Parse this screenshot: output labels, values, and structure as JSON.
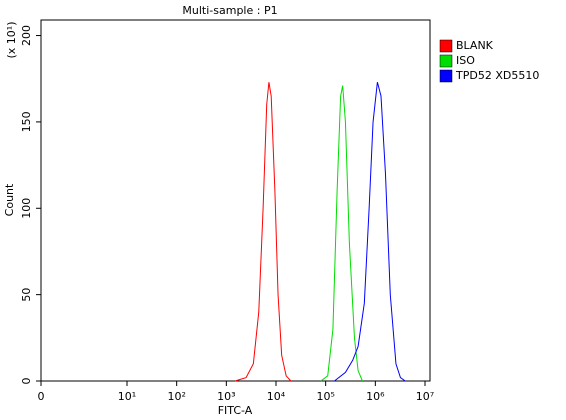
{
  "chart_data": {
    "type": "line",
    "title": "Multi-sample : P1",
    "x_label": "FITC-A",
    "y_label": "Count",
    "y_multiplier": "(x 10¹)",
    "xscale": "log",
    "xlim": [
      0,
      10000000
    ],
    "xticks": [
      0,
      {
        "value": 10,
        "label": "10¹"
      },
      {
        "value": 100,
        "label": "10²"
      },
      {
        "value": 1000,
        "label": "10³"
      },
      {
        "value": 10000,
        "label": "10⁴"
      },
      {
        "value": 100000,
        "label": "10⁵"
      },
      {
        "value": 1000000,
        "label": "10⁶"
      },
      {
        "value": 10000000,
        "label": "10⁷"
      }
    ],
    "ylim": [
      0,
      209
    ],
    "yticks": [
      0,
      50,
      100,
      150,
      200
    ],
    "legend": "top-right",
    "series": [
      {
        "name": "BLANK",
        "color": "#ff0000",
        "x": [
          1500,
          2500,
          3500,
          4500,
          5500,
          6500,
          7200,
          8000,
          9500,
          11000,
          13000,
          16000,
          20000
        ],
        "values": [
          0,
          2,
          10,
          40,
          100,
          160,
          173,
          165,
          110,
          50,
          15,
          3,
          0
        ]
      },
      {
        "name": "ISO",
        "color": "#00dd00",
        "x": [
          80000,
          110000,
          140000,
          170000,
          200000,
          220000,
          250000,
          300000,
          380000,
          450000,
          550000
        ],
        "values": [
          0,
          3,
          30,
          110,
          165,
          171,
          150,
          80,
          25,
          6,
          0
        ]
      },
      {
        "name": "TPD52 XD5510",
        "color": "#0000ff",
        "x": [
          150000,
          250000,
          350000,
          450000,
          600000,
          750000,
          900000,
          1100000,
          1300000,
          1600000,
          2000000,
          2600000,
          3200000,
          4000000
        ],
        "values": [
          0,
          5,
          12,
          20,
          45,
          100,
          150,
          173,
          165,
          120,
          50,
          10,
          2,
          0
        ]
      }
    ]
  }
}
